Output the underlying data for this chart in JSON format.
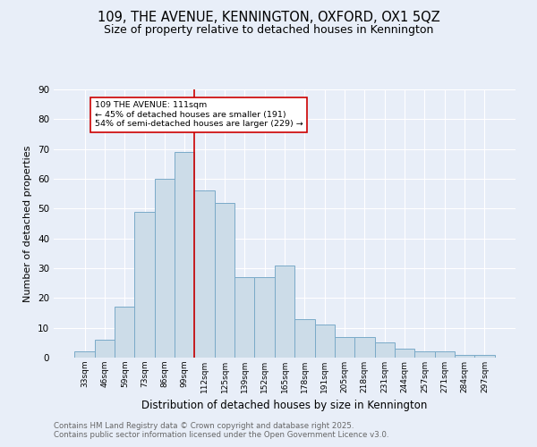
{
  "title": "109, THE AVENUE, KENNINGTON, OXFORD, OX1 5QZ",
  "subtitle": "Size of property relative to detached houses in Kennington",
  "xlabel": "Distribution of detached houses by size in Kennington",
  "ylabel": "Number of detached properties",
  "bar_labels": [
    "33sqm",
    "46sqm",
    "59sqm",
    "73sqm",
    "86sqm",
    "99sqm",
    "112sqm",
    "125sqm",
    "139sqm",
    "152sqm",
    "165sqm",
    "178sqm",
    "191sqm",
    "205sqm",
    "218sqm",
    "231sqm",
    "244sqm",
    "257sqm",
    "271sqm",
    "284sqm",
    "297sqm"
  ],
  "bar_heights": [
    2,
    6,
    17,
    49,
    60,
    69,
    56,
    52,
    27,
    27,
    31,
    13,
    11,
    7,
    7,
    5,
    3,
    2,
    2,
    1,
    1
  ],
  "bar_color": "#ccdce8",
  "bar_edge_color": "#7aaac8",
  "vline_index": 6,
  "vline_color": "#cc0000",
  "annotation_title": "109 THE AVENUE: 111sqm",
  "annotation_line1": "← 45% of detached houses are smaller (191)",
  "annotation_line2": "54% of semi-detached houses are larger (229) →",
  "annotation_box_facecolor": "#ffffff",
  "annotation_border_color": "#cc0000",
  "ylim": [
    0,
    90
  ],
  "yticks": [
    0,
    10,
    20,
    30,
    40,
    50,
    60,
    70,
    80,
    90
  ],
  "footnote1": "Contains HM Land Registry data © Crown copyright and database right 2025.",
  "footnote2": "Contains public sector information licensed under the Open Government Licence v3.0.",
  "bg_color": "#e8eef8",
  "title_fontsize": 10.5,
  "subtitle_fontsize": 9,
  "grid_color": "#ffffff",
  "ylabel_fontsize": 8,
  "xlabel_fontsize": 8.5,
  "footnote_color": "#666666",
  "footnote_fontsize": 6.2
}
